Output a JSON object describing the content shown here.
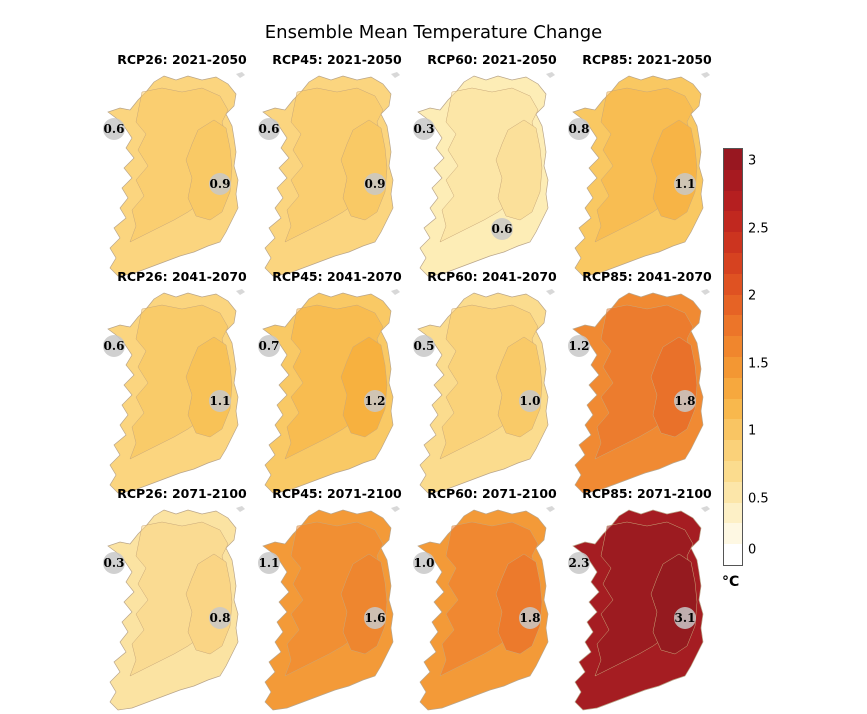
{
  "title": "Ensemble Mean Temperature Change",
  "colorbar": {
    "ticks": [
      "3",
      "2.5",
      "2",
      "1.5",
      "1",
      "0.5",
      "0"
    ],
    "tick_values": [
      3,
      2.5,
      2,
      1.5,
      1,
      0.5,
      0
    ],
    "min": 0,
    "max": 3.1,
    "unit": "°C"
  },
  "panels": [
    {
      "title": "RCP26: 2021-2050",
      "west": "0.6",
      "east": "0.9",
      "west_color": "#fbd57f",
      "east_color": "#f9c965"
    },
    {
      "title": "RCP45: 2021-2050",
      "west": "0.6",
      "east": "0.9",
      "west_color": "#fbd57f",
      "east_color": "#f9c965"
    },
    {
      "title": "RCP60: 2021-2050",
      "west": "0.3",
      "east": "0.6",
      "west_color": "#fdedb6",
      "east_color": "#fbe09a"
    },
    {
      "title": "RCP85: 2021-2050",
      "west": "0.8",
      "east": "1.1",
      "west_color": "#f9c862",
      "east_color": "#f7b446"
    },
    {
      "title": "RCP26: 2041-2070",
      "west": "0.6",
      "east": "1.1",
      "west_color": "#fbd57f",
      "east_color": "#f8c257"
    },
    {
      "title": "RCP45: 2041-2070",
      "west": "0.7",
      "east": "1.2",
      "west_color": "#f9c965",
      "east_color": "#f7b13f"
    },
    {
      "title": "RCP60: 2041-2070",
      "west": "0.5",
      "east": "1.0",
      "west_color": "#fbdc8e",
      "east_color": "#f9ca68"
    },
    {
      "title": "RCP85: 2041-2070",
      "west": "1.2",
      "east": "1.8",
      "west_color": "#f08a33",
      "east_color": "#e9712a"
    },
    {
      "title": "RCP26: 2071-2100",
      "west": "0.3",
      "east": "0.8",
      "west_color": "#fbe3a2",
      "east_color": "#fad585"
    },
    {
      "title": "RCP45: 2071-2100",
      "west": "1.1",
      "east": "1.6",
      "west_color": "#f39a38",
      "east_color": "#ee862f"
    },
    {
      "title": "RCP60: 2071-2100",
      "west": "1.0",
      "east": "1.8",
      "west_color": "#f39a38",
      "east_color": "#ec7a2c"
    },
    {
      "title": "RCP85: 2071-2100",
      "west": "2.3",
      "east": "3.1",
      "west_color": "#a51d22",
      "east_color": "#951a1f"
    }
  ]
}
